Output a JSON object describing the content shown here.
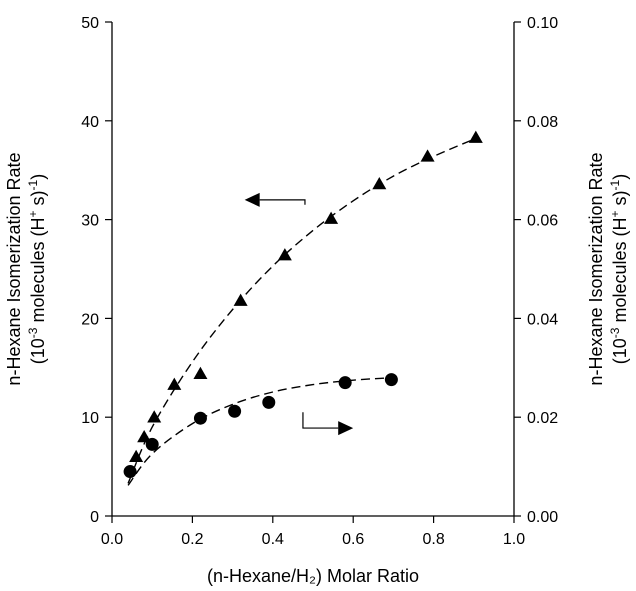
{
  "chart_data": {
    "type": "scatter",
    "xlabel": "(n-Hexane/H₂) Molar Ratio",
    "ylabel": {
      "line1": "n-Hexane Isomerization Rate",
      "line2_pre": "(10",
      "line2_exp": "-3",
      "line2_mid": " molecules (H",
      "line2_plus": "+",
      "line2_s": " s)",
      "line2_end_exp": "-1",
      "line2_close": ")"
    },
    "y2label": {
      "line1": "n-Hexane Isomerization Rate",
      "line2_pre": "(10",
      "line2_exp": "-3",
      "line2_mid": " molecules (H",
      "line2_plus": "+",
      "line2_s": " s)",
      "line2_end_exp": "-1",
      "line2_close": ")"
    },
    "xlim": [
      0.0,
      1.0
    ],
    "ylim": [
      0,
      50
    ],
    "y2lim": [
      0.0,
      0.1
    ],
    "xticks": [
      "0.0",
      "0.2",
      "0.4",
      "0.6",
      "0.8",
      "1.0"
    ],
    "yticks": [
      "0",
      "10",
      "20",
      "30",
      "40",
      "50"
    ],
    "y2ticks": [
      "0.00",
      "0.02",
      "0.04",
      "0.06",
      "0.08",
      "0.10"
    ],
    "grid": false,
    "series": [
      {
        "marker": "triangle",
        "axis": "left",
        "x": [
          0.06,
          0.08,
          0.105,
          0.155,
          0.22,
          0.32,
          0.43,
          0.545,
          0.665,
          0.785,
          0.905
        ],
        "y": [
          6.0,
          8.0,
          10.0,
          13.3,
          14.4,
          21.8,
          26.4,
          30.1,
          33.6,
          36.4,
          38.3
        ],
        "fit_x": [
          0.04,
          0.1,
          0.2,
          0.3,
          0.4,
          0.5,
          0.6,
          0.7,
          0.8,
          0.91
        ],
        "fit_y": [
          3.3,
          9.0,
          15.6,
          20.9,
          25.3,
          28.9,
          31.9,
          34.4,
          36.4,
          38.3
        ]
      },
      {
        "marker": "circle",
        "axis": "right",
        "x": [
          0.045,
          0.1,
          0.22,
          0.305,
          0.39,
          0.58,
          0.695
        ],
        "y": [
          0.009,
          0.0145,
          0.0198,
          0.0212,
          0.023,
          0.027,
          0.0276
        ],
        "fit_x": [
          0.04,
          0.1,
          0.2,
          0.3,
          0.4,
          0.5,
          0.6,
          0.7
        ],
        "fit_y": [
          0.0062,
          0.0126,
          0.0187,
          0.0226,
          0.0251,
          0.0266,
          0.0275,
          0.028
        ]
      }
    ],
    "annotations": [
      {
        "type": "arrow",
        "direction": "left",
        "points_to_axis": "left",
        "path": [
          [
            0.48,
            31.5
          ],
          [
            0.48,
            32.0
          ],
          [
            0.33,
            32.0
          ]
        ]
      },
      {
        "type": "arrow",
        "direction": "right",
        "points_to_axis": "right",
        "path": [
          [
            0.475,
            0.021
          ],
          [
            0.475,
            0.0178
          ],
          [
            0.6,
            0.0178
          ]
        ]
      }
    ]
  }
}
